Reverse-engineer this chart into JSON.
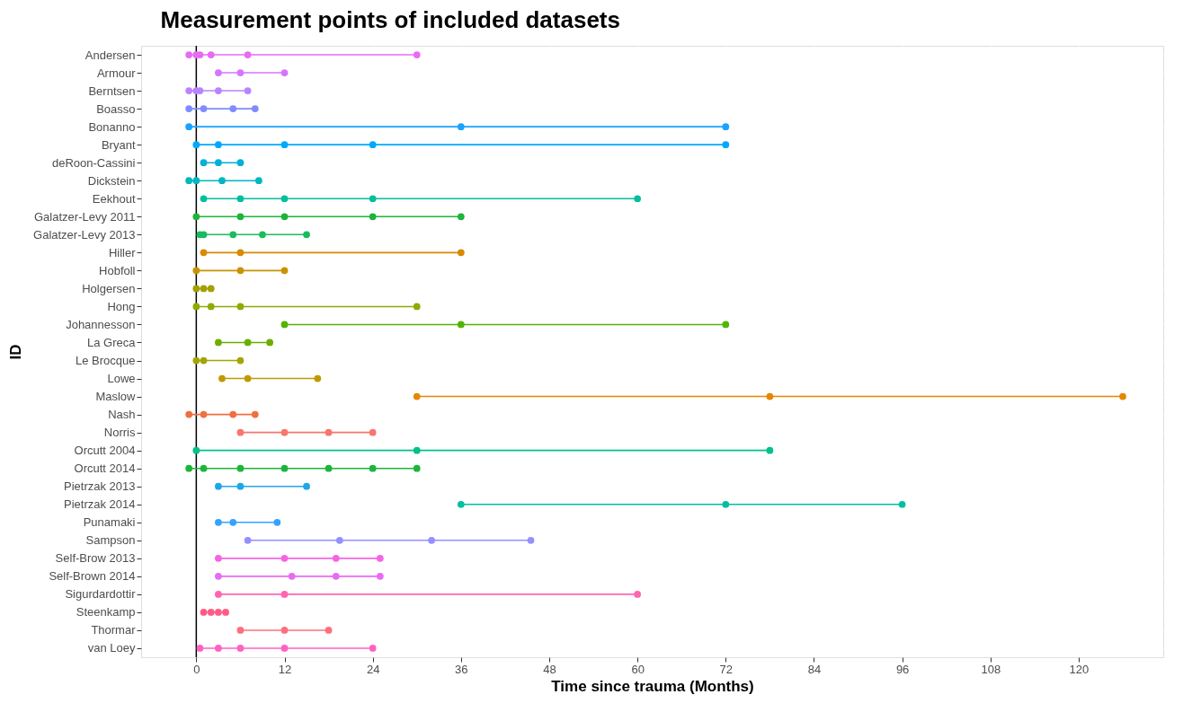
{
  "chart_data": {
    "type": "line",
    "orientation": "horizontal",
    "title": "Measurement points of included datasets",
    "xlabel": "Time since trauma (Months)",
    "ylabel": "ID",
    "categories": [
      "Andersen",
      "Armour",
      "Berntsen",
      "Boasso",
      "Bonanno",
      "Bryant",
      "deRoon-Cassini",
      "Dickstein",
      "Eekhout",
      "Galatzer-Levy 2011",
      "Galatzer-Levy 2013",
      "Hiller",
      "Hobfoll",
      "Holgersen",
      "Hong",
      "Johannesson",
      "La Greca",
      "Le Brocque",
      "Lowe",
      "Maslow",
      "Nash",
      "Norris",
      "Orcutt 2004",
      "Orcutt 2014",
      "Pietrzak 2013",
      "Pietrzak 2014",
      "Punamaki",
      "Sampson",
      "Self-Brow 2013",
      "Self-Brown 2014",
      "Sigurdardottir",
      "Steenkamp",
      "Thormar",
      "van Loey"
    ],
    "series": [
      {
        "color": "#E76BF3",
        "x": [
          "Andersen",
          "Andersen",
          "Andersen",
          "Andersen",
          "Andersen",
          "Andersen"
        ],
        "values": [
          -1,
          0,
          0.5,
          2,
          7,
          30
        ]
      },
      {
        "color": "#D575FE",
        "x": [
          "Armour",
          "Armour",
          "Armour"
        ],
        "values": [
          3,
          6,
          12
        ]
      },
      {
        "color": "#B983FF",
        "x": [
          "Berntsen",
          "Berntsen",
          "Berntsen",
          "Berntsen",
          "Berntsen"
        ],
        "values": [
          -1,
          0,
          0.5,
          3,
          7
        ]
      },
      {
        "color": "#7F8CFF",
        "x": [
          "Boasso",
          "Boasso",
          "Boasso",
          "Boasso"
        ],
        "values": [
          -1,
          1,
          5,
          8
        ]
      },
      {
        "color": "#1AA2FF",
        "x": [
          "Bonanno",
          "Bonanno",
          "Bonanno"
        ],
        "values": [
          -1,
          36,
          72
        ]
      },
      {
        "color": "#00A9FF",
        "x": [
          "Bryant",
          "Bryant",
          "Bryant",
          "Bryant",
          "Bryant"
        ],
        "values": [
          0,
          3,
          12,
          24,
          72
        ]
      },
      {
        "color": "#00B0D8",
        "x": [
          "deRoon-Cassini",
          "deRoon-Cassini",
          "deRoon-Cassini"
        ],
        "values": [
          1,
          3,
          6
        ]
      },
      {
        "color": "#00B7C0",
        "x": [
          "Dickstein",
          "Dickstein",
          "Dickstein",
          "Dickstein"
        ],
        "values": [
          -1,
          0,
          3.5,
          8.5
        ]
      },
      {
        "color": "#00BF9C",
        "x": [
          "Eekhout",
          "Eekhout",
          "Eekhout",
          "Eekhout",
          "Eekhout"
        ],
        "values": [
          1,
          6,
          12,
          24,
          60
        ]
      },
      {
        "color": "#1DB43A",
        "x": [
          "Galatzer-Levy 2011",
          "Galatzer-Levy 2011",
          "Galatzer-Levy 2011",
          "Galatzer-Levy 2011",
          "Galatzer-Levy 2011"
        ],
        "values": [
          0,
          6,
          12,
          24,
          36
        ]
      },
      {
        "color": "#19BC5C",
        "x": [
          "Galatzer-Levy 2013",
          "Galatzer-Levy 2013",
          "Galatzer-Levy 2013",
          "Galatzer-Levy 2013",
          "Galatzer-Levy 2013"
        ],
        "values": [
          0.5,
          1,
          5,
          9,
          15
        ]
      },
      {
        "color": "#D88A00",
        "x": [
          "Hiller",
          "Hiller",
          "Hiller"
        ],
        "values": [
          1,
          6,
          36
        ]
      },
      {
        "color": "#C99200",
        "x": [
          "Hobfoll",
          "Hobfoll",
          "Hobfoll"
        ],
        "values": [
          0,
          6,
          12
        ]
      },
      {
        "color": "#A3A000",
        "x": [
          "Holgersen",
          "Holgersen",
          "Holgersen"
        ],
        "values": [
          0,
          1,
          2
        ]
      },
      {
        "color": "#8EAB00",
        "x": [
          "Hong",
          "Hong",
          "Hong",
          "Hong"
        ],
        "values": [
          0,
          2,
          6,
          30
        ]
      },
      {
        "color": "#53B400",
        "x": [
          "Johannesson",
          "Johannesson",
          "Johannesson"
        ],
        "values": [
          12,
          36,
          72
        ]
      },
      {
        "color": "#6BAE00",
        "x": [
          "La Greca",
          "La Greca",
          "La Greca"
        ],
        "values": [
          3,
          7,
          10
        ]
      },
      {
        "color": "#A3A500",
        "x": [
          "Le Brocque",
          "Le Brocque",
          "Le Brocque"
        ],
        "values": [
          0,
          1,
          6
        ]
      },
      {
        "color": "#BE9A00",
        "x": [
          "Lowe",
          "Lowe",
          "Lowe"
        ],
        "values": [
          3.5,
          7,
          16.5
        ]
      },
      {
        "color": "#E58700",
        "x": [
          "Maslow",
          "Maslow",
          "Maslow"
        ],
        "values": [
          30,
          78,
          126
        ]
      },
      {
        "color": "#EF6F40",
        "x": [
          "Nash",
          "Nash",
          "Nash",
          "Nash"
        ],
        "values": [
          -1,
          1,
          5,
          8
        ]
      },
      {
        "color": "#F8766D",
        "x": [
          "Norris",
          "Norris",
          "Norris",
          "Norris"
        ],
        "values": [
          6,
          12,
          18,
          24
        ]
      },
      {
        "color": "#00C08B",
        "x": [
          "Orcutt 2004",
          "Orcutt 2004",
          "Orcutt 2004"
        ],
        "values": [
          0,
          30,
          78
        ]
      },
      {
        "color": "#1DB43A",
        "x": [
          "Orcutt 2014",
          "Orcutt 2014",
          "Orcutt 2014",
          "Orcutt 2014",
          "Orcutt 2014",
          "Orcutt 2014",
          "Orcutt 2014"
        ],
        "values": [
          -1,
          1,
          6,
          12,
          18,
          24,
          30
        ]
      },
      {
        "color": "#1FA6E8",
        "x": [
          "Pietrzak 2013",
          "Pietrzak 2013",
          "Pietrzak 2013"
        ],
        "values": [
          3,
          6,
          15
        ]
      },
      {
        "color": "#00BFA5",
        "x": [
          "Pietrzak 2014",
          "Pietrzak 2014",
          "Pietrzak 2014"
        ],
        "values": [
          36,
          72,
          96
        ]
      },
      {
        "color": "#35A2FF",
        "x": [
          "Punamaki",
          "Punamaki",
          "Punamaki"
        ],
        "values": [
          3,
          5,
          11
        ]
      },
      {
        "color": "#9590FF",
        "x": [
          "Sampson",
          "Sampson",
          "Sampson",
          "Sampson"
        ],
        "values": [
          7,
          19.5,
          32,
          45.5
        ]
      },
      {
        "color": "#F564E3",
        "x": [
          "Self-Brow 2013",
          "Self-Brow 2013",
          "Self-Brow 2013",
          "Self-Brow 2013"
        ],
        "values": [
          3,
          12,
          19,
          25
        ]
      },
      {
        "color": "#E76BF3",
        "x": [
          "Self-Brown 2014",
          "Self-Brown 2014",
          "Self-Brown 2014",
          "Self-Brown 2014"
        ],
        "values": [
          3,
          13,
          19,
          25
        ]
      },
      {
        "color": "#FF64B0",
        "x": [
          "Sigurdardottir",
          "Sigurdardottir",
          "Sigurdardottir"
        ],
        "values": [
          3,
          12,
          60
        ]
      },
      {
        "color": "#FF5C88",
        "x": [
          "Steenkamp",
          "Steenkamp",
          "Steenkamp",
          "Steenkamp"
        ],
        "values": [
          1,
          2,
          3,
          4
        ]
      },
      {
        "color": "#FD6F7E",
        "x": [
          "Thormar",
          "Thormar",
          "Thormar"
        ],
        "values": [
          6,
          12,
          18
        ]
      },
      {
        "color": "#FF61C3",
        "x": [
          "van Loey",
          "van Loey",
          "van Loey",
          "van Loey",
          "van Loey"
        ],
        "values": [
          0.5,
          3,
          6,
          12,
          24
        ]
      }
    ],
    "xlim": [
      -7.5,
      131.5
    ],
    "xticks": [
      0,
      12,
      24,
      36,
      48,
      60,
      72,
      84,
      96,
      108,
      120
    ],
    "ref_lines": [
      {
        "axis": "x",
        "value": 0,
        "color": "#000000"
      }
    ],
    "grid": true,
    "marker": "circle",
    "line_style": "solid",
    "legend": false
  }
}
